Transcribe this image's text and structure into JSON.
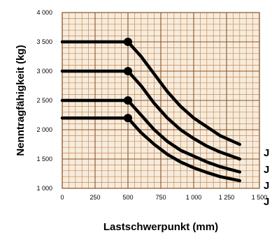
{
  "chart_data": {
    "type": "line",
    "xlabel": "Lastschwerpunkt (mm)",
    "ylabel": "Nenntragfähigkeit (kg)",
    "xlim": [
      0,
      1500
    ],
    "ylim": [
      1000,
      4000
    ],
    "x_ticks": [
      0,
      250,
      500,
      750,
      1000,
      1250,
      1500
    ],
    "y_ticks": [
      1000,
      1500,
      2000,
      2500,
      3000,
      3500,
      4000
    ],
    "x_tick_labels": [
      "0",
      "250",
      "500",
      "750",
      "1 000",
      "1 250",
      "1 500"
    ],
    "y_tick_labels": [
      "1 000",
      "1 500",
      "2 000",
      "2 500",
      "3 000",
      "3 500",
      "4 000"
    ],
    "grid": true,
    "colors": {
      "background": "#ffffff",
      "grid_fill": "#f6ecdd",
      "grid_minor": "#c68a54",
      "grid_major": "#8a5326",
      "curve": "#000000"
    },
    "series": [
      {
        "name": "J",
        "x": [
          0,
          500,
          600,
          700,
          800,
          900,
          1000,
          1100,
          1200,
          1350
        ],
        "y": [
          3500,
          3500,
          3250,
          2950,
          2650,
          2400,
          2200,
          2050,
          1900,
          1750
        ]
      },
      {
        "name": "J",
        "x": [
          0,
          500,
          600,
          700,
          800,
          900,
          1000,
          1100,
          1200,
          1350
        ],
        "y": [
          3000,
          3000,
          2750,
          2450,
          2200,
          2000,
          1850,
          1720,
          1620,
          1500
        ]
      },
      {
        "name": "J",
        "x": [
          0,
          500,
          600,
          700,
          800,
          900,
          1000,
          1100,
          1200,
          1350
        ],
        "y": [
          2500,
          2500,
          2250,
          2000,
          1800,
          1650,
          1550,
          1450,
          1370,
          1280
        ]
      },
      {
        "name": "J",
        "x": [
          0,
          500,
          600,
          700,
          800,
          900,
          1000,
          1100,
          1200,
          1350
        ],
        "y": [
          2200,
          2200,
          1950,
          1750,
          1580,
          1450,
          1350,
          1270,
          1200,
          1130
        ]
      }
    ]
  }
}
